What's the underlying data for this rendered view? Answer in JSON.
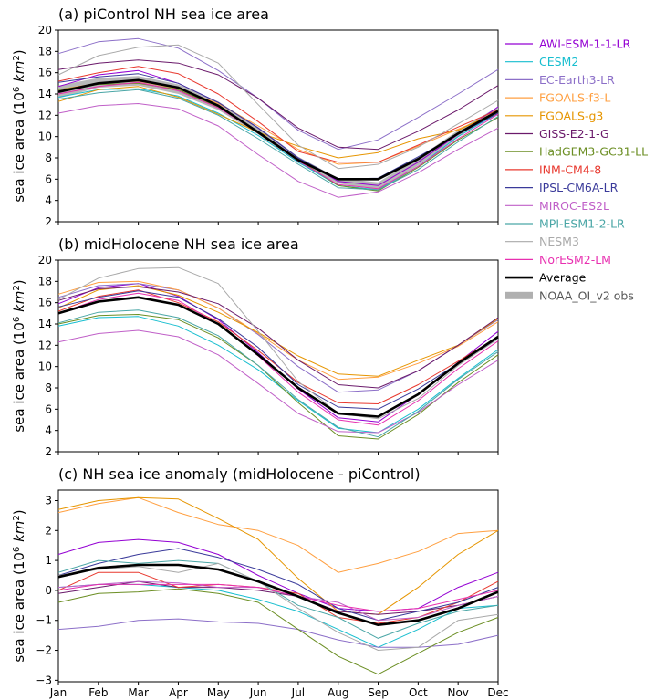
{
  "colors": {
    "AWI-ESM-1-1-LR": "#9400d3",
    "CESM2": "#17becf",
    "EC-Earth3-LR": "#8c6fc8",
    "FGOALS-f3-L": "#ff9f40",
    "FGOALS-g3": "#e69500",
    "GISS-E2-1-G": "#6b1a6b",
    "HadGEM3-GC31-LL": "#6b8e23",
    "INM-CM4-8": "#e8392f",
    "IPSL-CM6A-LR": "#3a3a9a",
    "MIROC-ES2L": "#c060c8",
    "MPI-ESM1-2-LR": "#4aa6a6",
    "NESM3": "#a9a9a9",
    "NorESM2-LM": "#e830b0",
    "Average": "#000000",
    "NOAA_OI_v2 obs": "#b0b0b0"
  },
  "legend": {
    "entries": [
      "AWI-ESM-1-1-LR",
      "CESM2",
      "EC-Earth3-LR",
      "FGOALS-f3-L",
      "FGOALS-g3",
      "GISS-E2-1-G",
      "HadGEM3-GC31-LL",
      "INM-CM4-8",
      "IPSL-CM6A-LR",
      "MIROC-ES2L",
      "MPI-ESM1-2-LR",
      "NESM3",
      "NorESM2-LM",
      "Average",
      "NOAA_OI_v2 obs"
    ],
    "placement": "right"
  },
  "chart_data": [
    {
      "type": "line",
      "title": "(a) piControl NH sea ice area",
      "ylabel": "sea ice area (10^6 km^2)",
      "ylim": [
        2,
        20
      ],
      "yticks": [
        2,
        4,
        6,
        8,
        10,
        12,
        14,
        16,
        18,
        20
      ],
      "categories": [
        "Jan",
        "Feb",
        "Mar",
        "Apr",
        "May",
        "Jun",
        "Jul",
        "Aug",
        "Sep",
        "Oct",
        "Nov",
        "Dec"
      ],
      "obs_band": {
        "name": "NOAA_OI_v2 obs",
        "lower": [
          13.6,
          14.6,
          14.8,
          14.0,
          12.5,
          10.2,
          7.5,
          5.6,
          5.0,
          7.3,
          10.0,
          12.3
        ],
        "upper": [
          14.8,
          15.5,
          15.7,
          14.9,
          13.3,
          10.9,
          8.1,
          6.1,
          5.7,
          8.0,
          10.6,
          12.8
        ]
      },
      "series": [
        {
          "name": "AWI-ESM-1-1-LR",
          "values": [
            14.7,
            15.8,
            16.2,
            15.0,
            13.2,
            10.8,
            8.0,
            5.8,
            5.4,
            7.6,
            10.2,
            12.8
          ]
        },
        {
          "name": "CESM2",
          "values": [
            13.7,
            14.4,
            14.5,
            13.8,
            12.2,
            10.1,
            7.6,
            5.4,
            5.0,
            7.2,
            10.0,
            12.2
          ]
        },
        {
          "name": "EC-Earth3-LR",
          "values": [
            17.8,
            18.9,
            19.2,
            18.3,
            16.2,
            13.6,
            10.6,
            8.8,
            9.7,
            11.8,
            14.0,
            16.3
          ]
        },
        {
          "name": "FGOALS-f3-L",
          "values": [
            14.4,
            15.0,
            15.2,
            14.5,
            13.1,
            11.0,
            8.8,
            7.4,
            7.6,
            9.1,
            10.7,
            12.2
          ]
        },
        {
          "name": "FGOALS-g3",
          "values": [
            13.3,
            14.4,
            14.7,
            13.7,
            12.1,
            10.4,
            9.1,
            8.0,
            8.5,
            9.8,
            10.6,
            12.4
          ]
        },
        {
          "name": "GISS-E2-1-G",
          "values": [
            16.3,
            16.9,
            17.2,
            16.9,
            15.8,
            13.6,
            10.8,
            9.0,
            8.8,
            10.5,
            12.5,
            14.8
          ]
        },
        {
          "name": "HadGEM3-GC31-LL",
          "values": [
            14.4,
            14.9,
            15.0,
            14.4,
            12.8,
            10.5,
            7.8,
            5.4,
            4.9,
            7.1,
            9.7,
            11.8
          ]
        },
        {
          "name": "INM-CM4-8",
          "values": [
            15.2,
            16.0,
            16.6,
            15.9,
            14.0,
            11.4,
            8.6,
            7.6,
            7.6,
            9.2,
            10.9,
            12.5
          ]
        },
        {
          "name": "IPSL-CM6A-LR",
          "values": [
            15.1,
            15.6,
            15.9,
            15.0,
            13.2,
            10.8,
            8.0,
            6.0,
            6.1,
            8.1,
            10.2,
            12.2
          ]
        },
        {
          "name": "MIROC-ES2L",
          "values": [
            12.2,
            12.9,
            13.1,
            12.6,
            11.0,
            8.3,
            5.8,
            4.3,
            4.8,
            6.6,
            8.8,
            10.8
          ]
        },
        {
          "name": "MPI-ESM1-2-LR",
          "values": [
            13.5,
            14.1,
            14.4,
            13.6,
            12.0,
            9.8,
            7.4,
            5.2,
            5.0,
            6.9,
            9.5,
            11.9
          ]
        },
        {
          "name": "NESM3",
          "values": [
            15.8,
            17.6,
            18.4,
            18.6,
            16.9,
            13.0,
            9.2,
            7.0,
            7.4,
            9.0,
            11.2,
            13.4
          ]
        },
        {
          "name": "NorESM2-LM",
          "values": [
            14.0,
            14.7,
            15.1,
            14.3,
            12.7,
            10.4,
            7.7,
            5.5,
            5.1,
            7.2,
            9.8,
            12.1
          ]
        },
        {
          "name": "Average",
          "values": [
            14.2,
            15.0,
            15.3,
            14.6,
            12.9,
            10.4,
            7.8,
            6.0,
            6.0,
            7.9,
            10.3,
            12.4
          ]
        }
      ]
    },
    {
      "type": "line",
      "title": "(b) midHolocene NH sea ice area",
      "ylabel": "sea ice area (10^6 km^2)",
      "ylim": [
        2,
        20
      ],
      "yticks": [
        2,
        4,
        6,
        8,
        10,
        12,
        14,
        16,
        18,
        20
      ],
      "categories": [
        "Jan",
        "Feb",
        "Mar",
        "Apr",
        "May",
        "Jun",
        "Jul",
        "Aug",
        "Sep",
        "Oct",
        "Nov",
        "Dec"
      ],
      "series": [
        {
          "name": "AWI-ESM-1-1-LR",
          "values": [
            15.9,
            17.4,
            17.8,
            16.6,
            14.4,
            11.3,
            7.9,
            5.2,
            4.8,
            7.4,
            10.4,
            13.3
          ]
        },
        {
          "name": "CESM2",
          "values": [
            13.8,
            14.6,
            14.7,
            13.8,
            12.0,
            9.7,
            6.8,
            4.2,
            3.8,
            6.0,
            8.9,
            11.6
          ]
        },
        {
          "name": "EC-Earth3-LR",
          "values": [
            16.5,
            17.6,
            17.8,
            17.2,
            15.5,
            13.0,
            10.0,
            7.6,
            7.8,
            9.6,
            12.0,
            14.4
          ]
        },
        {
          "name": "FGOALS-f3-L",
          "values": [
            16.8,
            17.9,
            18.0,
            17.2,
            15.5,
            13.1,
            10.6,
            8.8,
            9.0,
            10.3,
            11.9,
            14.2
          ]
        },
        {
          "name": "FGOALS-g3",
          "values": [
            15.5,
            17.2,
            17.6,
            16.7,
            15.1,
            13.2,
            11.0,
            9.3,
            9.1,
            10.6,
            12.0,
            14.5
          ]
        },
        {
          "name": "GISS-E2-1-G",
          "values": [
            16.2,
            17.3,
            17.5,
            17.0,
            15.9,
            13.6,
            10.6,
            8.3,
            8.0,
            9.6,
            12.0,
            14.6
          ]
        },
        {
          "name": "HadGEM3-GC31-LL",
          "values": [
            14.0,
            14.8,
            14.9,
            14.4,
            12.7,
            10.1,
            6.6,
            3.5,
            3.2,
            5.5,
            8.5,
            11.1
          ]
        },
        {
          "name": "INM-CM4-8",
          "values": [
            15.2,
            16.6,
            17.2,
            16.0,
            14.2,
            11.5,
            8.5,
            6.6,
            6.5,
            8.3,
            10.5,
            12.8
          ]
        },
        {
          "name": "IPSL-CM6A-LR",
          "values": [
            15.6,
            16.5,
            17.1,
            16.5,
            14.5,
            11.8,
            8.3,
            6.2,
            6.0,
            7.9,
            10.3,
            12.6
          ]
        },
        {
          "name": "MIROC-ES2L",
          "values": [
            12.3,
            13.1,
            13.4,
            12.8,
            11.1,
            8.4,
            5.6,
            3.9,
            3.8,
            5.7,
            8.3,
            10.6
          ]
        },
        {
          "name": "MPI-ESM1-2-LR",
          "values": [
            14.1,
            15.1,
            15.3,
            14.6,
            12.9,
            10.1,
            6.9,
            4.3,
            3.4,
            5.8,
            8.8,
            11.4
          ]
        },
        {
          "name": "NESM3",
          "values": [
            16.3,
            18.3,
            19.2,
            19.3,
            17.8,
            13.3,
            8.6,
            5.6,
            5.1,
            7.0,
            10.1,
            12.6
          ]
        },
        {
          "name": "NorESM2-LM",
          "values": [
            15.0,
            16.3,
            16.9,
            16.2,
            14.0,
            11.0,
            7.6,
            5.0,
            4.5,
            6.8,
            9.8,
            12.4
          ]
        },
        {
          "name": "Average",
          "values": [
            15.0,
            16.1,
            16.5,
            15.8,
            14.0,
            11.1,
            8.0,
            5.6,
            5.3,
            7.4,
            10.3,
            12.8
          ]
        }
      ]
    },
    {
      "type": "line",
      "title": "(c) NH sea ice anomaly (midHolocene - piControl)",
      "ylabel": "sea ice area (10^6 km^2)",
      "ylim": [
        -3.05,
        3.35
      ],
      "yticks": [
        -3,
        -2,
        -1,
        0,
        1,
        2,
        3
      ],
      "categories": [
        "Jan",
        "Feb",
        "Mar",
        "Apr",
        "May",
        "Jun",
        "Jul",
        "Aug",
        "Sep",
        "Oct",
        "Nov",
        "Dec"
      ],
      "series": [
        {
          "name": "AWI-ESM-1-1-LR",
          "values": [
            1.2,
            1.6,
            1.7,
            1.6,
            1.2,
            0.5,
            -0.1,
            -0.6,
            -0.7,
            -0.6,
            0.1,
            0.6
          ]
        },
        {
          "name": "CESM2",
          "values": [
            0.1,
            0.2,
            0.2,
            0.1,
            0.0,
            -0.3,
            -0.7,
            -1.3,
            -1.9,
            -1.3,
            -0.6,
            -0.5
          ]
        },
        {
          "name": "EC-Earth3-LR",
          "values": [
            -1.3,
            -1.2,
            -1.0,
            -0.95,
            -1.05,
            -1.1,
            -1.3,
            -1.65,
            -1.9,
            -1.9,
            -1.8,
            -1.5
          ]
        },
        {
          "name": "FGOALS-f3-L",
          "values": [
            2.6,
            2.9,
            3.1,
            2.6,
            2.2,
            2.0,
            1.5,
            0.6,
            0.9,
            1.3,
            1.9,
            2.0
          ]
        },
        {
          "name": "FGOALS-g3",
          "values": [
            2.7,
            3.0,
            3.1,
            3.05,
            2.4,
            1.7,
            0.4,
            -0.7,
            -0.8,
            0.1,
            1.2,
            2.0
          ]
        },
        {
          "name": "GISS-E2-1-G",
          "values": [
            -0.1,
            0.1,
            0.3,
            0.1,
            0.1,
            0.0,
            -0.2,
            -0.7,
            -0.8,
            -0.7,
            -0.5,
            -0.2
          ]
        },
        {
          "name": "HadGEM3-GC31-LL",
          "values": [
            -0.4,
            -0.1,
            -0.05,
            0.05,
            -0.1,
            -0.4,
            -1.3,
            -2.2,
            -2.8,
            -2.1,
            -1.4,
            -0.9
          ]
        },
        {
          "name": "INM-CM4-8",
          "values": [
            0.0,
            0.6,
            0.6,
            0.1,
            0.2,
            0.1,
            -0.1,
            -0.9,
            -1.1,
            -0.9,
            -0.4,
            0.3
          ]
        },
        {
          "name": "IPSL-CM6A-LR",
          "values": [
            0.5,
            0.9,
            1.2,
            1.4,
            1.1,
            0.7,
            0.2,
            -0.6,
            -1.0,
            -0.7,
            -0.4,
            0.1
          ]
        },
        {
          "name": "MIROC-ES2L",
          "values": [
            0.1,
            0.2,
            0.3,
            0.25,
            0.1,
            0.1,
            -0.2,
            -0.4,
            -1.0,
            -0.9,
            -0.5,
            -0.2
          ]
        },
        {
          "name": "MPI-ESM1-2-LR",
          "values": [
            0.6,
            1.0,
            0.9,
            1.0,
            0.9,
            0.3,
            -0.5,
            -0.9,
            -1.6,
            -1.1,
            -0.7,
            -0.5
          ]
        },
        {
          "name": "NESM3",
          "values": [
            0.5,
            0.7,
            0.8,
            0.6,
            0.9,
            0.3,
            -0.6,
            -1.4,
            -2.0,
            -1.9,
            -1.0,
            -0.8
          ]
        },
        {
          "name": "NorESM2-LM",
          "values": [
            0.0,
            0.2,
            0.2,
            0.2,
            0.2,
            0.1,
            -0.2,
            -0.5,
            -0.7,
            -0.6,
            -0.3,
            0.0
          ]
        },
        {
          "name": "Average",
          "values": [
            0.45,
            0.75,
            0.85,
            0.85,
            0.7,
            0.3,
            -0.2,
            -0.75,
            -1.15,
            -1.0,
            -0.6,
            -0.05
          ]
        }
      ]
    }
  ]
}
